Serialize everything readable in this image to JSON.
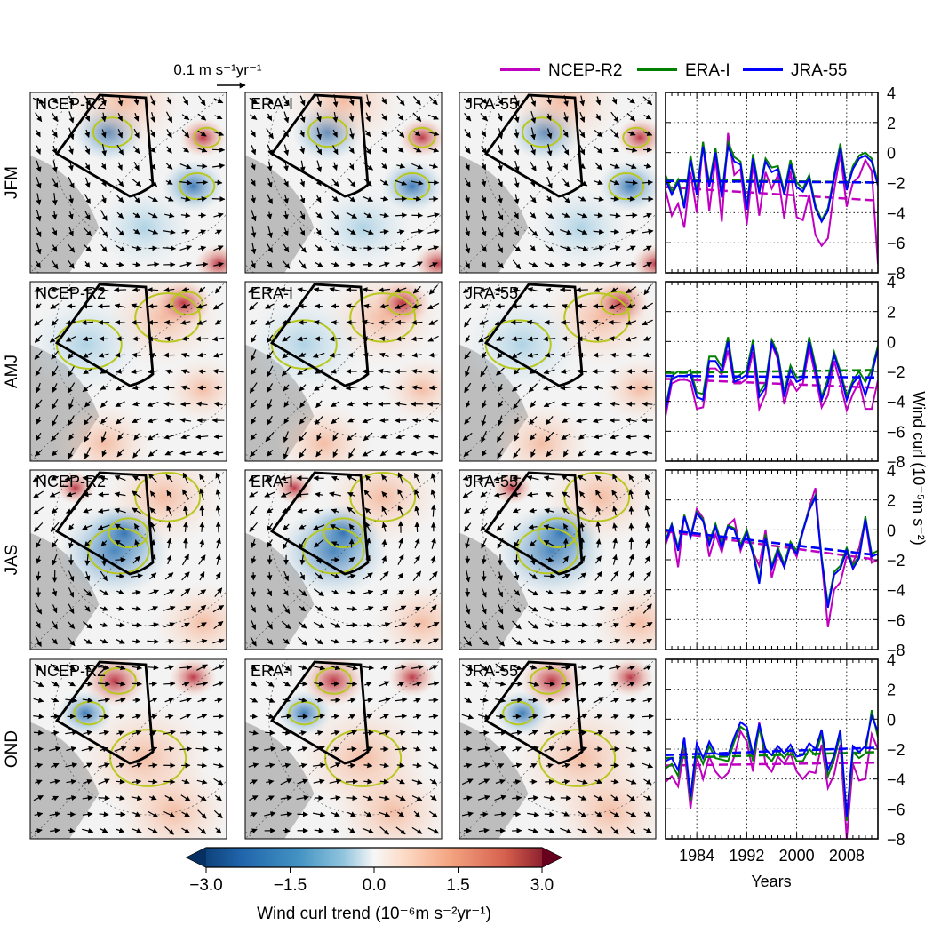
{
  "figure": {
    "quiver_key": {
      "label": "0.1 m s⁻¹yr⁻¹"
    },
    "legend": [
      {
        "name": "NCEP-R2",
        "color": "#c000c0"
      },
      {
        "name": "ERA-I",
        "color": "#008000"
      },
      {
        "name": "JRA-55",
        "color": "#0000ff"
      }
    ],
    "row_labels": [
      "JFM",
      "AMJ",
      "JAS",
      "OND"
    ],
    "map_titles": [
      "NCEP-R2",
      "ERA-I",
      "JRA-55"
    ],
    "colorbar": {
      "label": "Wind curl trend (10⁻⁶m s⁻²yr⁻¹)",
      "ticks": [
        "−3.0",
        "−1.5",
        "0.0",
        "1.5",
        "3.0"
      ],
      "range": [
        -3.0,
        3.0
      ]
    },
    "right_axis_label": "Wind curl (10⁻⁵m s⁻²)",
    "x_axis_label": "Years",
    "x_ticks": [
      "1984",
      "1992",
      "2000",
      "2008"
    ],
    "y_ticks": [
      "4",
      "2",
      "0",
      "−2",
      "−4",
      "−6",
      "−8"
    ]
  },
  "chart_data": {
    "type": "line",
    "x": [
      1979,
      1980,
      1981,
      1982,
      1983,
      1984,
      1985,
      1986,
      1987,
      1988,
      1989,
      1990,
      1991,
      1992,
      1993,
      1994,
      1995,
      1996,
      1997,
      1998,
      1999,
      2000,
      2001,
      2002,
      2003,
      2004,
      2005,
      2006,
      2007,
      2008,
      2009,
      2010,
      2011,
      2012,
      2013
    ],
    "xlim": [
      1979,
      2013
    ],
    "ylim": [
      -8,
      4
    ],
    "xlabel": "Years",
    "ylabel": "Wind curl (10⁻⁵m s⁻²)",
    "panels": [
      {
        "season": "JFM",
        "series": [
          {
            "name": "NCEP-R2",
            "values": [
              -2.5,
              -4.2,
              -3.4,
              -5.0,
              -1.3,
              -4.0,
              0.7,
              -3.9,
              -0.4,
              -4.6,
              1.3,
              -1.5,
              -1.1,
              -4.8,
              -0.8,
              -4.2,
              -1.3,
              -2.4,
              -1.5,
              -4.4,
              -1.2,
              -4.3,
              -4.5,
              -2.8,
              -5.5,
              -6.2,
              -5.7,
              -2.5,
              -0.1,
              -3.6,
              -2.0,
              -1.6,
              -0.5,
              -1.2,
              -7.4
            ],
            "trend": [
              -2.3,
              -3.2
            ]
          },
          {
            "name": "ERA-I",
            "values": [
              -1.5,
              -2.6,
              -1.8,
              -3.5,
              -0.2,
              -2.6,
              0.7,
              -2.1,
              0.3,
              -2.8,
              0.7,
              -0.3,
              -0.6,
              -3.6,
              -0.1,
              -2.5,
              -0.4,
              -1.0,
              -0.9,
              -2.6,
              -0.5,
              -2.0,
              -2.4,
              -1.5,
              -3.5,
              -4.5,
              -3.7,
              -1.5,
              0.6,
              -2.3,
              -0.9,
              -0.2,
              0.0,
              -0.4,
              -2.0
            ],
            "trend": [
              -1.8,
              -2.0
            ]
          },
          {
            "name": "JRA-55",
            "values": [
              -1.8,
              -2.8,
              -2.0,
              -3.7,
              -0.5,
              -2.8,
              0.4,
              -2.3,
              0.0,
              -3.0,
              0.4,
              -0.6,
              -0.8,
              -3.8,
              -0.4,
              -2.7,
              -0.6,
              -1.3,
              -1.1,
              -2.8,
              -0.8,
              -2.3,
              -2.6,
              -1.7,
              -3.7,
              -4.6,
              -3.9,
              -1.7,
              0.3,
              -2.5,
              -1.1,
              -0.4,
              -0.2,
              -0.6,
              -2.2
            ],
            "trend": [
              -1.9,
              -2.0
            ]
          }
        ]
      },
      {
        "season": "AMJ",
        "series": [
          {
            "name": "NCEP-R2",
            "values": [
              -5.0,
              -2.8,
              -2.6,
              -2.5,
              -2.7,
              -4.5,
              -4.4,
              -1.8,
              -1.8,
              -2.2,
              -0.6,
              -2.8,
              -2.8,
              -2.5,
              -0.7,
              -4.5,
              -3.5,
              -0.2,
              -1.2,
              -4.2,
              -2.6,
              -3.3,
              -2.8,
              -0.4,
              -2.3,
              -4.4,
              -3.6,
              -1.3,
              -2.8,
              -4.6,
              -3.5,
              -2.7,
              -4.5,
              -4.5,
              -2.6
            ],
            "trend": [
              -2.5,
              -3.1
            ]
          },
          {
            "name": "ERA-I",
            "values": [
              -4.4,
              -2.3,
              -2.0,
              -2.1,
              -1.9,
              -3.4,
              -3.5,
              -1.0,
              -1.0,
              -1.7,
              0.3,
              -2.5,
              -2.2,
              -1.9,
              0.1,
              -3.4,
              -2.8,
              0.1,
              -0.8,
              -3.4,
              -1.6,
              -2.4,
              -2.3,
              0.3,
              -1.6,
              -3.7,
              -2.5,
              -0.7,
              -2.0,
              -3.6,
              -2.6,
              -2.0,
              -2.7,
              -1.9,
              -0.3
            ],
            "trend": [
              -2.1,
              -1.9
            ]
          },
          {
            "name": "JRA-55",
            "values": [
              -4.6,
              -2.5,
              -2.3,
              -2.3,
              -2.2,
              -3.7,
              -3.9,
              -1.3,
              -1.3,
              -2.0,
              0.0,
              -2.7,
              -2.5,
              -2.2,
              -0.2,
              -3.7,
              -3.1,
              -0.1,
              -1.0,
              -3.7,
              -1.9,
              -2.7,
              -2.5,
              0.0,
              -1.9,
              -3.9,
              -2.8,
              -0.9,
              -2.2,
              -3.9,
              -2.8,
              -2.3,
              -3.6,
              -2.2,
              -0.5
            ],
            "trend": [
              -2.3,
              -2.4
            ]
          }
        ]
      },
      {
        "season": "JAS",
        "series": [
          {
            "name": "NCEP-R2",
            "values": [
              -1.0,
              0.2,
              -2.5,
              1.0,
              -0.5,
              1.4,
              0.8,
              -1.8,
              -0.3,
              -1.5,
              0.3,
              0.7,
              -1.4,
              -0.2,
              -1.5,
              -2.4,
              0.0,
              -3.2,
              -1.6,
              -2.5,
              -1.0,
              -1.8,
              -0.1,
              1.5,
              2.8,
              -2.0,
              -6.5,
              -4.0,
              -3.5,
              -1.8,
              -2.2,
              -1.2,
              0.7,
              -2.2,
              -2.0
            ],
            "trend": [
              -0.1,
              -2.0
            ]
          },
          {
            "name": "ERA-I",
            "values": [
              -0.7,
              0.4,
              -1.2,
              1.0,
              -0.4,
              1.2,
              0.7,
              -0.8,
              0.4,
              -1.0,
              0.3,
              0.1,
              -1.0,
              0.0,
              -1.4,
              -3.4,
              -0.3,
              -2.4,
              -1.2,
              -2.3,
              -0.8,
              -1.4,
              0.0,
              1.4,
              2.3,
              -1.8,
              -5.0,
              -2.8,
              -2.4,
              -1.2,
              -2.4,
              -1.7,
              0.9,
              -1.6,
              -1.4
            ],
            "trend": [
              0.0,
              -1.7
            ]
          },
          {
            "name": "JRA-55",
            "values": [
              -0.8,
              0.3,
              -1.4,
              0.9,
              -0.5,
              1.1,
              0.6,
              -1.0,
              0.2,
              -1.2,
              0.2,
              0.0,
              -1.2,
              -0.2,
              -1.6,
              -3.6,
              -0.5,
              -2.6,
              -1.4,
              -2.5,
              -1.0,
              -1.6,
              -0.1,
              1.3,
              2.2,
              -2.0,
              -5.2,
              -3.0,
              -2.6,
              -1.4,
              -2.6,
              -1.9,
              0.7,
              -1.8,
              -1.6
            ],
            "trend": [
              0.0,
              -1.7
            ]
          }
        ]
      },
      {
        "season": "OND",
        "series": [
          {
            "name": "NCEP-R2",
            "values": [
              -4.2,
              -3.8,
              -4.5,
              -2.0,
              -6.0,
              -2.5,
              -4.0,
              -2.5,
              -3.5,
              -4.0,
              -3.6,
              -2.5,
              -0.8,
              -1.5,
              -3.5,
              -0.2,
              -3.0,
              -3.5,
              -2.5,
              -3.0,
              -2.3,
              -3.5,
              -4.0,
              -3.5,
              -3.6,
              -1.7,
              -4.6,
              -3.7,
              -1.7,
              -8.0,
              -3.0,
              -4.1,
              -4.0,
              -1.0,
              -2.0
            ],
            "trend": [
              -3.1,
              -2.9
            ]
          },
          {
            "name": "ERA-I",
            "values": [
              -3.3,
              -3.0,
              -3.8,
              -1.5,
              -5.5,
              -2.0,
              -3.0,
              -1.8,
              -2.6,
              -2.7,
              -2.8,
              -1.5,
              -0.5,
              -0.8,
              -2.8,
              -0.6,
              -2.4,
              -2.8,
              -2.1,
              -2.6,
              -2.0,
              -2.8,
              -2.8,
              -2.0,
              -2.4,
              -1.0,
              -3.8,
              -2.7,
              -1.0,
              -6.8,
              -2.2,
              -2.6,
              -2.3,
              0.6,
              -1.2
            ],
            "trend": [
              -2.6,
              -2.2
            ]
          },
          {
            "name": "JRA-55",
            "values": [
              -2.8,
              -2.6,
              -3.4,
              -1.2,
              -5.2,
              -1.6,
              -2.6,
              -1.5,
              -2.3,
              -2.4,
              -2.4,
              -1.2,
              -0.2,
              -0.5,
              -2.4,
              -0.3,
              -2.0,
              -2.4,
              -1.8,
              -2.3,
              -1.7,
              -2.5,
              -2.4,
              -1.6,
              -2.0,
              -0.7,
              -3.4,
              -2.4,
              -0.7,
              -6.5,
              -1.8,
              -2.2,
              -1.8,
              0.2,
              -0.8
            ],
            "trend": [
              -2.4,
              -1.9
            ]
          }
        ]
      }
    ]
  }
}
